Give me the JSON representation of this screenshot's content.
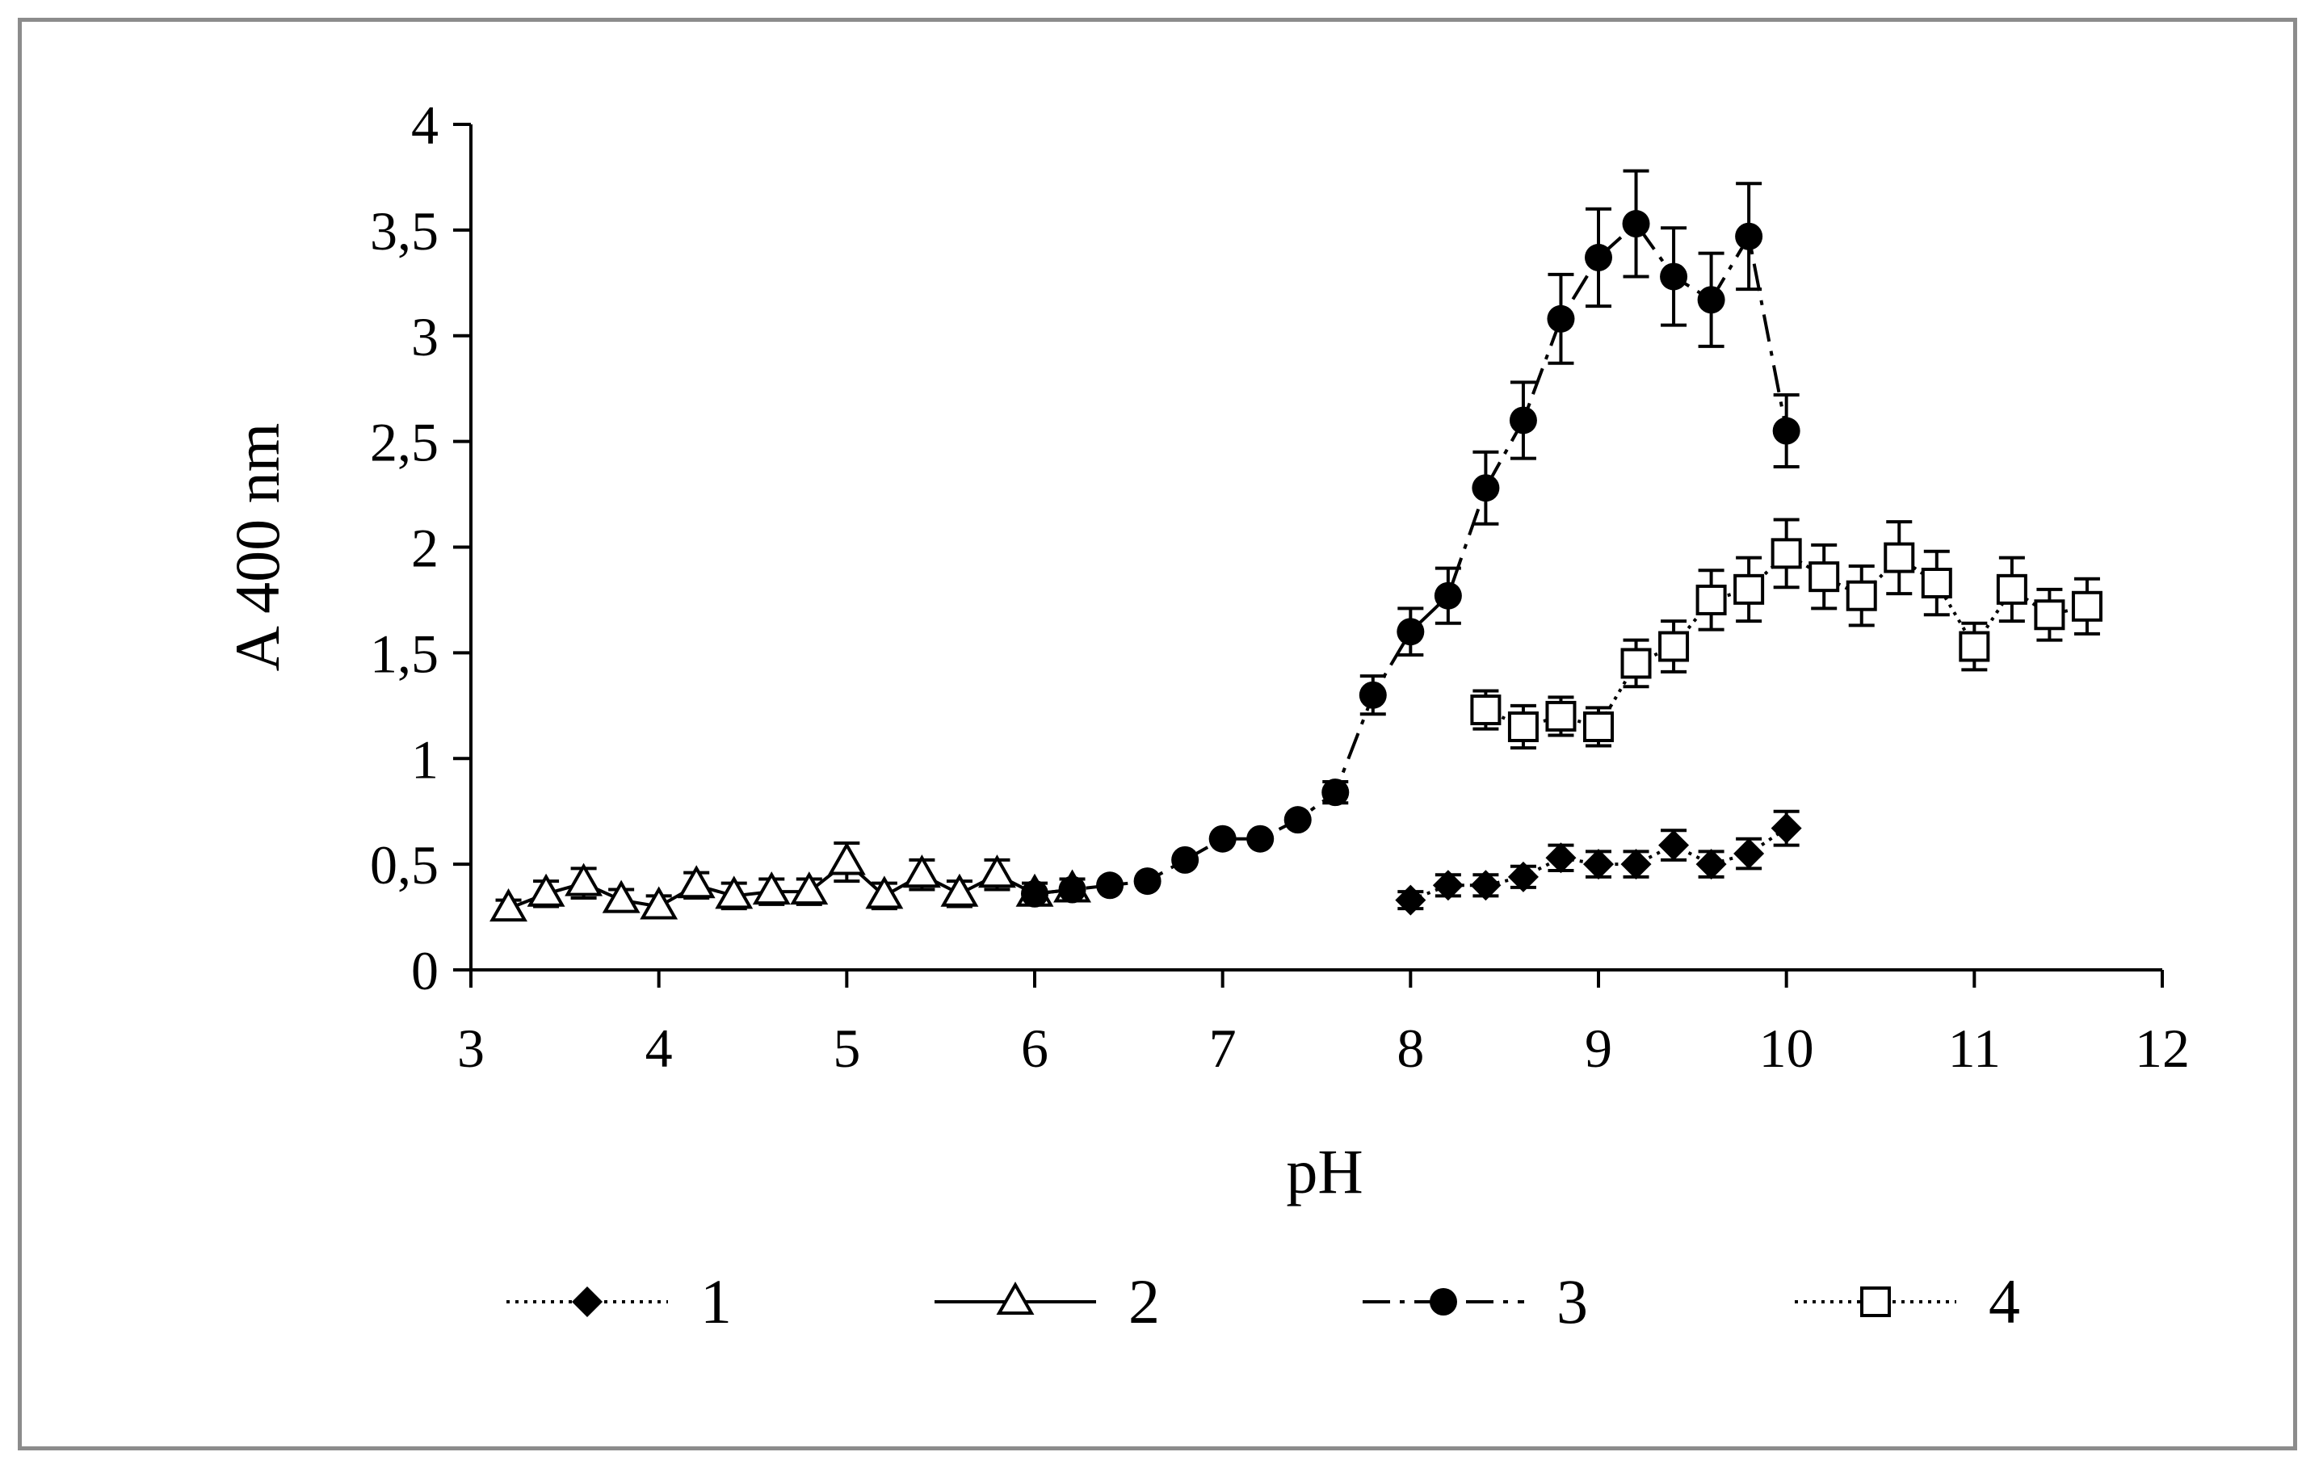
{
  "chart_data": {
    "type": "scatter",
    "xlabel": "pH",
    "ylabel": "A 400 nm",
    "xlim": [
      3,
      12
    ],
    "ylim": [
      0,
      4
    ],
    "x_ticks": [
      "3",
      "4",
      "5",
      "6",
      "7",
      "8",
      "9",
      "10",
      "11",
      "12"
    ],
    "y_ticks": [
      "0",
      "0,5",
      "1",
      "1,5",
      "2",
      "2,5",
      "3",
      "3,5",
      "4"
    ],
    "grid": false,
    "legend_position": "bottom",
    "series": [
      {
        "name": "1",
        "marker": "diamond-filled",
        "line": "dotted",
        "x": [
          8.0,
          8.2,
          8.4,
          8.6,
          8.8,
          9.0,
          9.2,
          9.4,
          9.6,
          9.8,
          10.0
        ],
        "y": [
          0.33,
          0.4,
          0.4,
          0.44,
          0.53,
          0.5,
          0.5,
          0.59,
          0.5,
          0.55,
          0.67
        ],
        "err": [
          0.04,
          0.05,
          0.05,
          0.05,
          0.06,
          0.06,
          0.06,
          0.07,
          0.06,
          0.07,
          0.08
        ]
      },
      {
        "name": "2",
        "marker": "triangle-open",
        "line": "solid",
        "x": [
          3.2,
          3.4,
          3.6,
          3.8,
          4.0,
          4.2,
          4.4,
          4.6,
          4.8,
          5.0,
          5.2,
          5.4,
          5.6,
          5.8,
          6.0,
          6.2
        ],
        "y": [
          0.29,
          0.36,
          0.41,
          0.33,
          0.3,
          0.4,
          0.35,
          0.37,
          0.37,
          0.51,
          0.35,
          0.45,
          0.36,
          0.45,
          0.36,
          0.38
        ],
        "err": [
          0.04,
          0.06,
          0.07,
          0.05,
          0.05,
          0.06,
          0.06,
          0.06,
          0.06,
          0.09,
          0.06,
          0.07,
          0.06,
          0.07,
          0.05,
          0.05
        ]
      },
      {
        "name": "3",
        "marker": "circle-filled",
        "line": "dash-dot",
        "x": [
          6.0,
          6.2,
          6.4,
          6.6,
          6.8,
          7.0,
          7.2,
          7.4,
          7.6,
          7.8,
          8.0,
          8.2,
          8.4,
          8.6,
          8.8,
          9.0,
          9.2,
          9.4,
          9.6,
          9.8,
          10.0
        ],
        "y": [
          0.36,
          0.38,
          0.4,
          0.42,
          0.52,
          0.62,
          0.62,
          0.71,
          0.84,
          1.3,
          1.6,
          1.77,
          2.28,
          2.6,
          3.08,
          3.37,
          3.53,
          3.28,
          3.17,
          3.47,
          2.55
        ],
        "err": [
          0.0,
          0.0,
          0.0,
          0.0,
          0.0,
          0.0,
          0.0,
          0.0,
          0.05,
          0.09,
          0.11,
          0.13,
          0.17,
          0.18,
          0.21,
          0.23,
          0.25,
          0.23,
          0.22,
          0.25,
          0.17
        ]
      },
      {
        "name": "4",
        "marker": "square-open",
        "line": "dotted",
        "x": [
          8.4,
          8.6,
          8.8,
          9.0,
          9.2,
          9.4,
          9.6,
          9.8,
          10.0,
          10.2,
          10.4,
          10.6,
          10.8,
          11.0,
          11.2,
          11.4,
          11.6
        ],
        "y": [
          1.23,
          1.15,
          1.2,
          1.15,
          1.45,
          1.53,
          1.75,
          1.8,
          1.97,
          1.86,
          1.77,
          1.95,
          1.83,
          1.53,
          1.8,
          1.68,
          1.72
        ],
        "err": [
          0.09,
          0.1,
          0.09,
          0.09,
          0.11,
          0.12,
          0.14,
          0.15,
          0.16,
          0.15,
          0.14,
          0.17,
          0.15,
          0.11,
          0.15,
          0.12,
          0.13
        ]
      }
    ]
  }
}
